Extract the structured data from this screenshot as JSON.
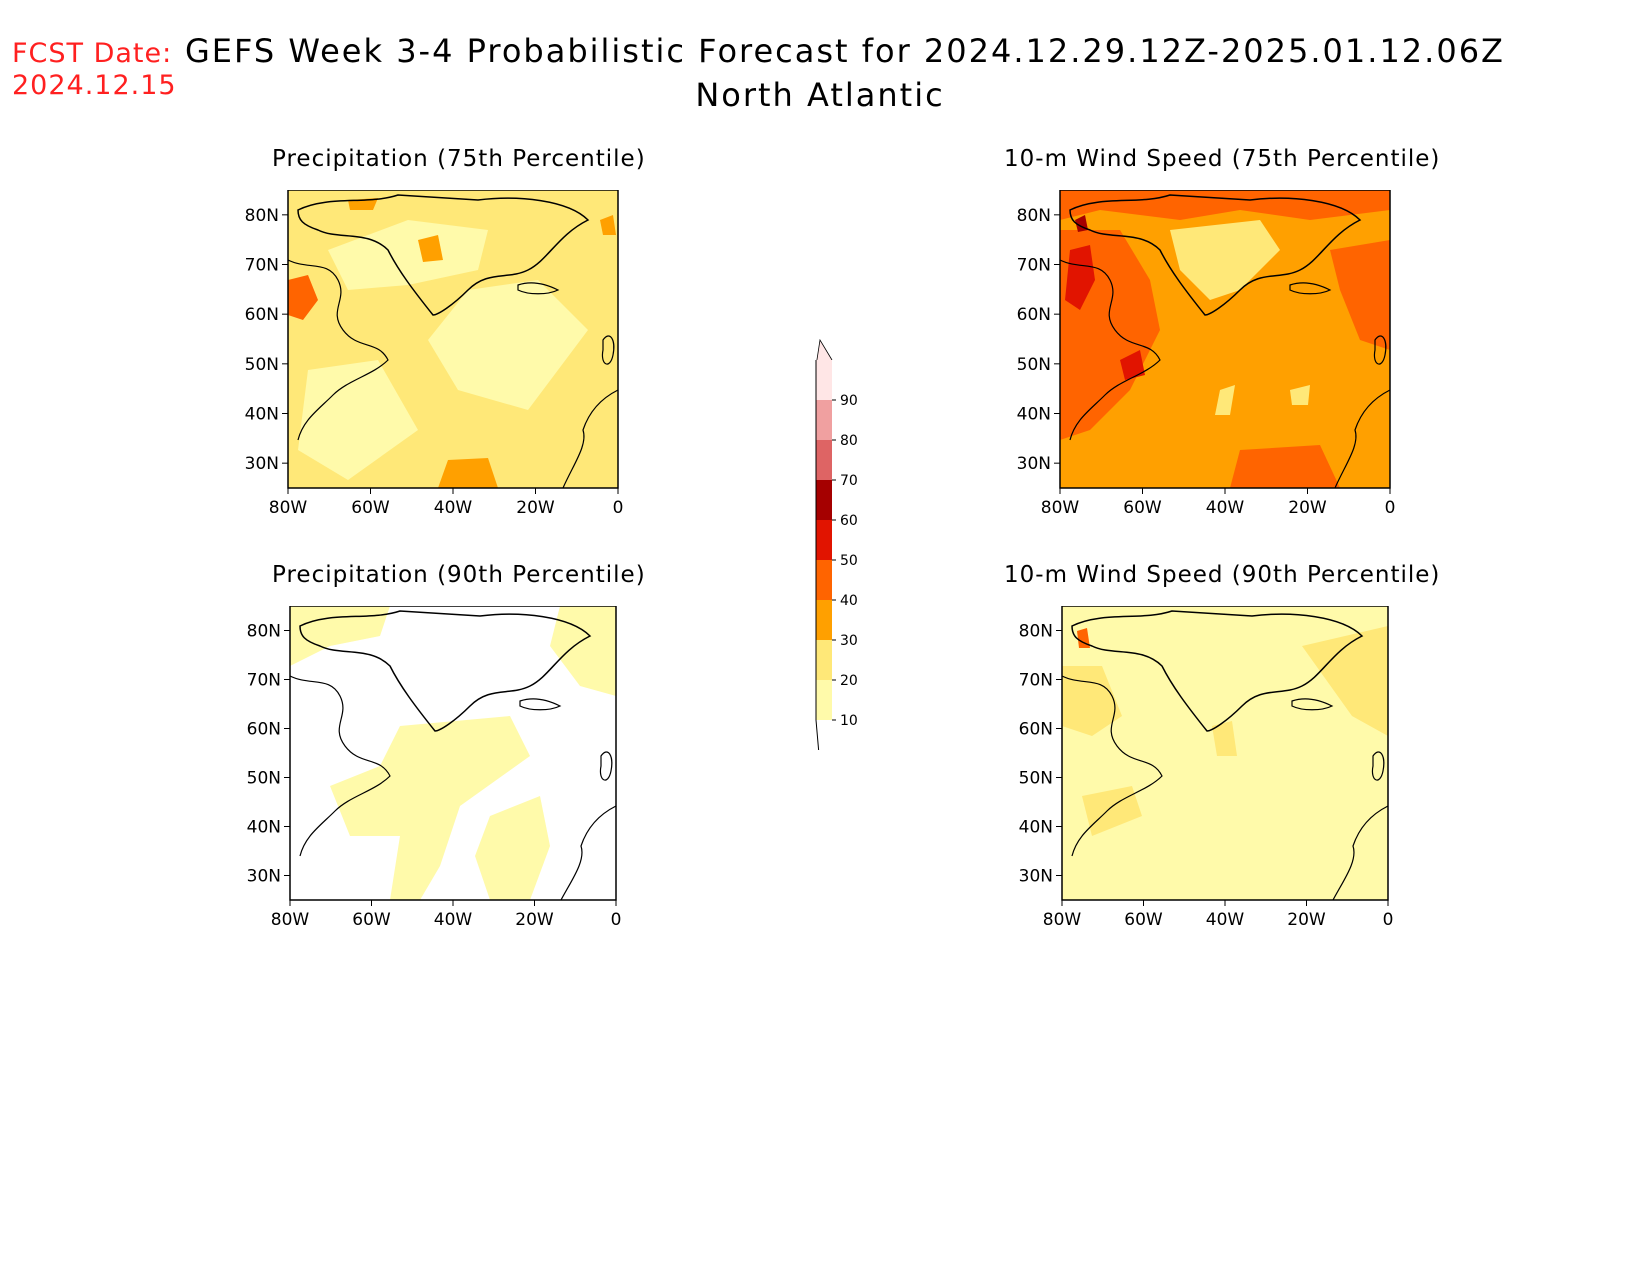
{
  "header": {
    "fcst_label": "FCST Date:",
    "fcst_date": "2024.12.15",
    "title": "GEFS Week 3-4 Probabilistic Forecast for 2024.12.29.12Z-2025.01.12.06Z",
    "subtitle": "North Atlantic"
  },
  "map_axes": {
    "lat_ticks": [
      "80N",
      "70N",
      "60N",
      "50N",
      "40N",
      "30N"
    ],
    "lon_ticks": [
      "80W",
      "60W",
      "40W",
      "20W",
      "0"
    ],
    "lat_range": [
      25,
      85
    ],
    "lon_range": [
      -80,
      0
    ]
  },
  "panels": [
    {
      "title": "Precipitation (75th Percentile)",
      "dominant_level": "20-30"
    },
    {
      "title": "10-m Wind Speed (75th Percentile)",
      "dominant_level": "30-40"
    },
    {
      "title": "Precipitation (90th Percentile)",
      "dominant_level": "10-20"
    },
    {
      "title": "10-m Wind Speed (90th Percentile)",
      "dominant_level": "10-20"
    }
  ],
  "colorbar": {
    "ticks": [
      "10",
      "20",
      "30",
      "40",
      "50",
      "60",
      "70",
      "80",
      "90"
    ],
    "colors": [
      "#fffaaa",
      "#ffe878",
      "#ffa000",
      "#ff6400",
      "#e11400",
      "#a50000",
      "#de6464",
      "#f0a0a0",
      "#ffe6e6"
    ]
  }
}
